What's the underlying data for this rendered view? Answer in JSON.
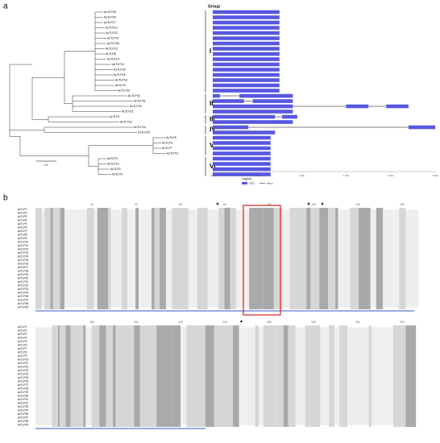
{
  "panel_a": {
    "label": "a",
    "group_title": "Group",
    "tree_scale": "0.1",
    "leaves": [
      "AcTLP26",
      "AcTLP29",
      "AcTLP17",
      "AcTLP12",
      "AcTLP22",
      "AcTLP27",
      "AcTLP28",
      "AcTLP13",
      "AcTLP8",
      "AcTLP14",
      "AcTLP19",
      "AcTLP30",
      "AcTLP15",
      "AcTLP18",
      "AcTLP3",
      "AcTLP20",
      "AcTLP16",
      "AcTLP31",
      "AcTLP32",
      "AcTLP21",
      "AcTLP1",
      "AcTLP23",
      "AcTLP24",
      "SsTLP25",
      "AcTLP5",
      "AcTLP6",
      "AcTLP7",
      "AcTLP11",
      "AcTLP4",
      "AcTLP10",
      "AcTLP2",
      "AcTLP9"
    ],
    "groups": [
      "I",
      "II",
      "III",
      "IV",
      "V",
      "VI"
    ],
    "genes": [
      [
        [
          0,
          750
        ]
      ],
      [
        [
          0,
          750
        ]
      ],
      [
        [
          0,
          750
        ]
      ],
      [
        [
          0,
          750
        ]
      ],
      [
        [
          0,
          750
        ]
      ],
      [
        [
          0,
          750
        ]
      ],
      [
        [
          0,
          750
        ]
      ],
      [
        [
          0,
          750
        ]
      ],
      [
        [
          0,
          750
        ]
      ],
      [
        [
          0,
          750
        ]
      ],
      [
        [
          0,
          750
        ]
      ],
      [
        [
          0,
          750
        ]
      ],
      [
        [
          0,
          750
        ]
      ],
      [
        [
          0,
          750
        ]
      ],
      [
        [
          0,
          750
        ]
      ],
      [
        [
          0,
          750
        ]
      ],
      [
        [
          0,
          80
        ],
        [
          300,
          900
        ]
      ],
      [
        [
          0,
          350
        ],
        [
          450,
          900
        ]
      ],
      [
        [
          0,
          900
        ],
        [
          1500,
          1750
        ],
        [
          1950,
          2200
        ]
      ],
      [
        [
          0,
          900
        ]
      ],
      [
        [
          0,
          700
        ],
        [
          780,
          950
        ]
      ],
      [
        [
          0,
          900
        ]
      ],
      [
        [
          0,
          400
        ],
        [
          2200,
          2500
        ]
      ],
      [
        [
          0,
          700
        ]
      ],
      [
        [
          0,
          650
        ]
      ],
      [
        [
          0,
          650
        ]
      ],
      [
        [
          0,
          650
        ]
      ],
      [
        [
          0,
          650
        ]
      ],
      [
        [
          0,
          650
        ]
      ],
      [
        [
          0,
          650
        ]
      ],
      [
        [
          0,
          650
        ]
      ],
      [
        [
          0,
          650
        ]
      ]
    ],
    "xlim": [
      0,
      2500
    ],
    "xticks": [
      {
        "value": 0,
        "label": "0kb"
      },
      {
        "value": 500,
        "label": "0.5kb"
      },
      {
        "value": 1000,
        "label": "1.0kb"
      },
      {
        "value": 1500,
        "label": "1.5kb"
      },
      {
        "value": 2000,
        "label": "2.0kb"
      },
      {
        "value": 2500,
        "label": "2.5kb"
      }
    ],
    "legend_title": "Legend",
    "legend": [
      {
        "name": "CDS",
        "color": "#5757e0"
      },
      {
        "name": "Intron",
        "color": "#000000"
      }
    ]
  },
  "panel_b": {
    "label": "b",
    "names": [
      "AcTLP1",
      "AcTLP2",
      "AcTLP3",
      "AcTLP4",
      "AcTLP5",
      "AcTLP6",
      "AcTLP7",
      "AcTLP8",
      "AcTLP9",
      "AcTLP10",
      "AcTLP11",
      "AcTLP12",
      "AcTLP13",
      "AcTLP14",
      "AcTLP15",
      "AcTLP16",
      "AcTLP17",
      "AcTLP18",
      "AcTLP19",
      "AcTLP20",
      "AcTLP21",
      "AcTLP22",
      "AcTLP23",
      "AcTLP24",
      "AcTLP26",
      "AcTLP27",
      "AcTLP28",
      "AcTLP29"
    ],
    "ruler1": [
      20,
      40,
      60,
      80,
      100,
      120,
      140,
      160
    ],
    "ruler2": [
      180,
      200,
      220,
      240,
      260,
      280,
      300,
      320
    ]
  }
}
